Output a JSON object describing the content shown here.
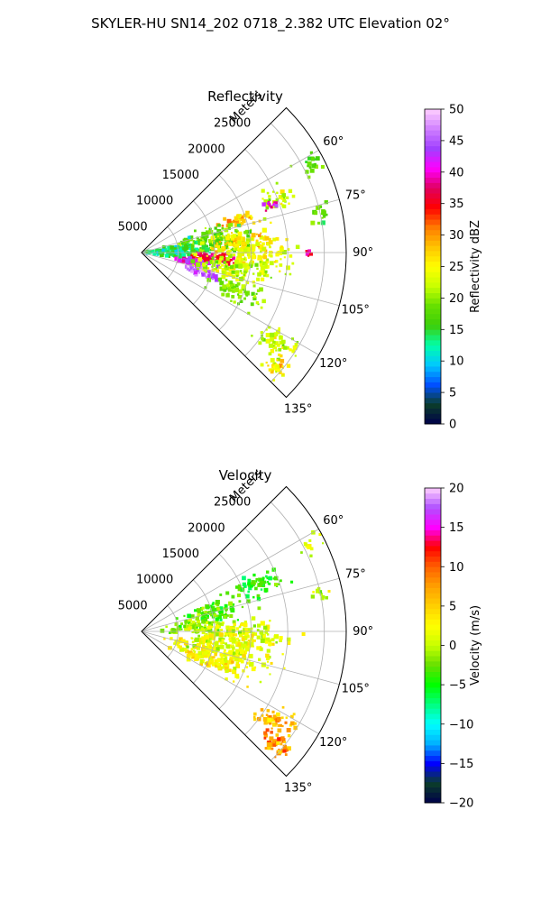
{
  "figure": {
    "suptitle": "SKYLER-HU  SN14_202  0718_2.382 UTC Elevation 02°"
  },
  "chart_data": [
    {
      "type": "heatmap",
      "subtype": "radar-sector-ppi",
      "title": "Reflectivity",
      "range_axis_label": "Meters",
      "range_ticks": [
        5000,
        10000,
        15000,
        20000,
        25000
      ],
      "range_tick_labels": [
        "5000",
        "10000",
        "15000",
        "20000",
        "25000"
      ],
      "azimuth_ticks_deg": [
        60,
        75,
        90,
        105,
        120,
        135
      ],
      "azimuth_tick_labels": [
        "60°",
        "75°",
        "90°",
        "105°",
        "120°",
        "135°"
      ],
      "azimuth_range_deg": [
        45,
        135
      ],
      "max_range_m": 28000,
      "grid": true,
      "colorbar": {
        "label": "Reflectivity dBZ",
        "range": [
          0,
          50
        ],
        "ticks": [
          0,
          5,
          10,
          15,
          20,
          25,
          30,
          35,
          40,
          45,
          50
        ],
        "tick_labels": [
          "0",
          "5",
          "10",
          "15",
          "20",
          "25",
          "30",
          "35",
          "40",
          "45",
          "50"
        ],
        "colormap": "NWSRef",
        "stops": [
          "#00004a",
          "#0b3d2a",
          "#0050ff",
          "#00c8ff",
          "#00ffaa",
          "#3ccf0a",
          "#66e000",
          "#c8ff00",
          "#ffff00",
          "#ffc400",
          "#ff7a00",
          "#ff0000",
          "#e00060",
          "#ff00ff",
          "#a040ff",
          "#d080ff",
          "#ffd0ff"
        ]
      },
      "echoes": [
        {
          "az": 62,
          "r": 26000,
          "value": 18,
          "spread_deg": 3,
          "spread_m": 1500,
          "n": 18
        },
        {
          "az": 68,
          "r": 20000,
          "value": 22,
          "spread_deg": 4,
          "spread_m": 2000,
          "n": 30
        },
        {
          "az": 72,
          "r": 14000,
          "value": 28,
          "spread_deg": 3,
          "spread_m": 2200,
          "n": 40
        },
        {
          "az": 70,
          "r": 19000,
          "value": 40,
          "spread_deg": 1.5,
          "spread_m": 800,
          "n": 14
        },
        {
          "az": 80,
          "r": 10000,
          "value": 18,
          "spread_deg": 8,
          "spread_m": 5000,
          "n": 140
        },
        {
          "az": 85,
          "r": 14000,
          "value": 26,
          "spread_deg": 6,
          "spread_m": 4000,
          "n": 110
        },
        {
          "az": 78,
          "r": 25000,
          "value": 18,
          "spread_deg": 3,
          "spread_m": 1200,
          "n": 18
        },
        {
          "az": 88,
          "r": 5000,
          "value": 14,
          "spread_deg": 10,
          "spread_m": 3500,
          "n": 120
        },
        {
          "az": 95,
          "r": 10000,
          "value": 36,
          "spread_deg": 4,
          "spread_m": 2500,
          "n": 70
        },
        {
          "az": 100,
          "r": 7000,
          "value": 42,
          "spread_deg": 3,
          "spread_m": 2000,
          "n": 50
        },
        {
          "az": 108,
          "r": 9000,
          "value": 45,
          "spread_deg": 3,
          "spread_m": 2200,
          "n": 50
        },
        {
          "az": 92,
          "r": 16000,
          "value": 24,
          "spread_deg": 6,
          "spread_m": 4000,
          "n": 90
        },
        {
          "az": 100,
          "r": 13000,
          "value": 22,
          "spread_deg": 8,
          "spread_m": 5000,
          "n": 120
        },
        {
          "az": 112,
          "r": 14000,
          "value": 20,
          "spread_deg": 6,
          "spread_m": 3000,
          "n": 60
        },
        {
          "az": 124,
          "r": 22000,
          "value": 22,
          "spread_deg": 4,
          "spread_m": 2500,
          "n": 50
        },
        {
          "az": 130,
          "r": 24000,
          "value": 25,
          "spread_deg": 3,
          "spread_m": 1500,
          "n": 35
        },
        {
          "az": 90,
          "r": 23000,
          "value": 38,
          "spread_deg": 1,
          "spread_m": 400,
          "n": 6
        }
      ]
    },
    {
      "type": "heatmap",
      "subtype": "radar-sector-ppi",
      "title": "Velocity",
      "range_axis_label": "Meters",
      "range_ticks": [
        5000,
        10000,
        15000,
        20000,
        25000
      ],
      "range_tick_labels": [
        "5000",
        "10000",
        "15000",
        "20000",
        "25000"
      ],
      "azimuth_ticks_deg": [
        60,
        75,
        90,
        105,
        120,
        135
      ],
      "azimuth_tick_labels": [
        "60°",
        "75°",
        "90°",
        "105°",
        "120°",
        "135°"
      ],
      "azimuth_range_deg": [
        45,
        135
      ],
      "max_range_m": 28000,
      "grid": true,
      "colorbar": {
        "label": "Velocity (m/s)",
        "range": [
          -20,
          20
        ],
        "ticks": [
          -20,
          -15,
          -10,
          -5,
          0,
          5,
          10,
          15,
          20
        ],
        "tick_labels": [
          "−20",
          "−15",
          "−10",
          "−5",
          "0",
          "5",
          "10",
          "15",
          "20"
        ],
        "colormap": "NWSVel",
        "stops": [
          "#00004a",
          "#0b3d2a",
          "#0000ff",
          "#00b0ff",
          "#00ffff",
          "#00ff80",
          "#00ff00",
          "#66e000",
          "#c8ff00",
          "#ffff00",
          "#ffd000",
          "#ffa000",
          "#ff6000",
          "#ff0000",
          "#ff00ff",
          "#b050ff",
          "#ffd0ff"
        ]
      },
      "echoes": [
        {
          "az": 62,
          "r": 26000,
          "value": 1,
          "spread_deg": 3,
          "spread_m": 1500,
          "n": 12
        },
        {
          "az": 68,
          "r": 17000,
          "value": -4,
          "spread_deg": 4,
          "spread_m": 3000,
          "n": 60
        },
        {
          "az": 75,
          "r": 10000,
          "value": -3,
          "spread_deg": 6,
          "spread_m": 4000,
          "n": 80
        },
        {
          "az": 85,
          "r": 8000,
          "value": -1,
          "spread_deg": 8,
          "spread_m": 4000,
          "n": 100
        },
        {
          "az": 92,
          "r": 14000,
          "value": 1,
          "spread_deg": 6,
          "spread_m": 5000,
          "n": 130
        },
        {
          "az": 102,
          "r": 12000,
          "value": 2,
          "spread_deg": 8,
          "spread_m": 6000,
          "n": 180
        },
        {
          "az": 112,
          "r": 10000,
          "value": 3,
          "spread_deg": 6,
          "spread_m": 5000,
          "n": 120
        },
        {
          "az": 78,
          "r": 25000,
          "value": 0,
          "spread_deg": 2,
          "spread_m": 1000,
          "n": 10
        },
        {
          "az": 124,
          "r": 22000,
          "value": 6,
          "spread_deg": 4,
          "spread_m": 2500,
          "n": 45
        },
        {
          "az": 130,
          "r": 24000,
          "value": 8,
          "spread_deg": 3,
          "spread_m": 2000,
          "n": 45
        }
      ]
    }
  ]
}
